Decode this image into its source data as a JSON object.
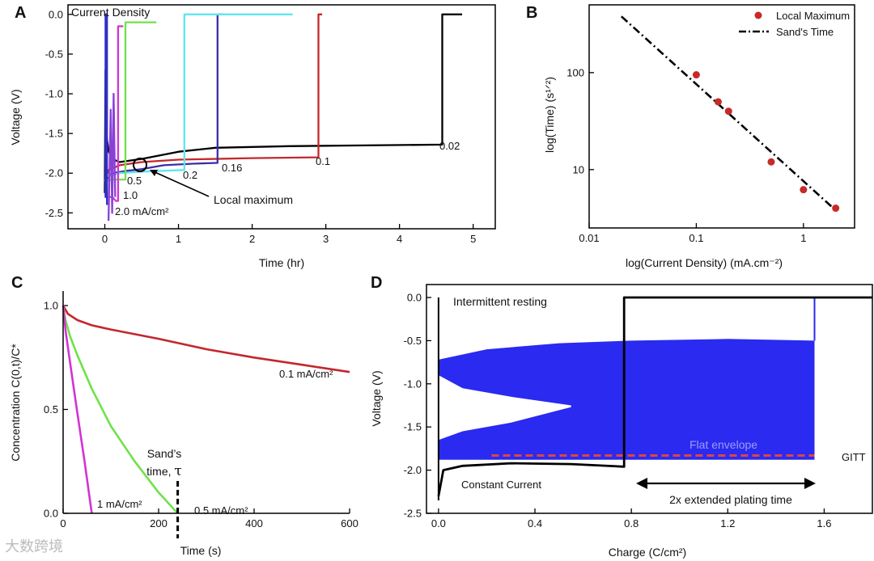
{
  "watermark": "大数跨境",
  "colors": {
    "black": "#000000",
    "red": "#c4272b",
    "cyan": "#5ee6ee",
    "blue": "#2f2fc4",
    "navy": "#3a2fa6",
    "green": "#6fe24a",
    "magenta": "#d432d4",
    "purple": "#8a40d8",
    "fill_blue": "#2a2af0",
    "dash_red": "#e0453f",
    "dot_red": "#c62a2a"
  },
  "chart_data": [
    {
      "panel": "A",
      "type": "line",
      "annotation_title": "Current Density",
      "xlabel": "Time (hr)",
      "ylabel": "Voltage (V)",
      "xlim": [
        -0.5,
        5.3
      ],
      "ylim": [
        -2.7,
        0.12
      ],
      "xticks": [
        "0",
        "1",
        "2",
        "3",
        "4",
        "5"
      ],
      "yticks": [
        "0.0",
        "-0.5",
        "-1.0",
        "-1.5",
        "-2.0",
        "-2.5"
      ],
      "series_labels": [
        "0.02",
        "0.1",
        "0.16",
        "0.2",
        "0.5",
        "1.0",
        "2.0 mA/cm²"
      ],
      "callout": "Local maximum",
      "series": [
        {
          "name": "0.02",
          "color": "black",
          "points": [
            [
              0.0,
              -2.25
            ],
            [
              0.01,
              -0.7
            ],
            [
              0.02,
              -1.5
            ],
            [
              0.05,
              -1.72
            ],
            [
              0.1,
              -1.82
            ],
            [
              0.2,
              -1.86
            ],
            [
              0.5,
              -1.82
            ],
            [
              1.0,
              -1.73
            ],
            [
              1.5,
              -1.68
            ],
            [
              2.5,
              -1.66
            ],
            [
              3.5,
              -1.65
            ],
            [
              4.58,
              -1.64
            ],
            [
              4.58,
              0.0
            ],
            [
              4.85,
              0.0
            ]
          ]
        },
        {
          "name": "0.1",
          "color": "red",
          "points": [
            [
              0.0,
              -2.1
            ],
            [
              0.05,
              -1.96
            ],
            [
              0.2,
              -1.9
            ],
            [
              0.5,
              -1.86
            ],
            [
              1.0,
              -1.83
            ],
            [
              2.0,
              -1.81
            ],
            [
              2.9,
              -1.8
            ],
            [
              2.9,
              0.0
            ],
            [
              2.95,
              0.0
            ]
          ]
        },
        {
          "name": "0.16",
          "color": "navy",
          "points": [
            [
              0.0,
              -2.1
            ],
            [
              0.1,
              -2.0
            ],
            [
              0.3,
              -1.97
            ],
            [
              0.5,
              -1.95
            ],
            [
              0.8,
              -1.9
            ],
            [
              1.2,
              -1.88
            ],
            [
              1.53,
              -1.87
            ],
            [
              1.53,
              0.0
            ],
            [
              1.6,
              0.0
            ]
          ]
        },
        {
          "name": "0.2",
          "color": "cyan",
          "points": [
            [
              0.0,
              -2.05
            ],
            [
              0.2,
              -2.0
            ],
            [
              0.5,
              -1.98
            ],
            [
              1.08,
              -1.96
            ],
            [
              1.08,
              0.0
            ],
            [
              2.55,
              0.0
            ]
          ]
        },
        {
          "name": "0.5",
          "color": "green",
          "points": [
            [
              0.0,
              -2.1
            ],
            [
              0.1,
              -2.08
            ],
            [
              0.2,
              -2.08
            ],
            [
              0.28,
              -2.08
            ],
            [
              0.28,
              -0.1
            ],
            [
              0.7,
              -0.1
            ]
          ]
        },
        {
          "name": "1.0",
          "color": "magenta",
          "points": [
            [
              0.05,
              -2.3
            ],
            [
              0.1,
              -2.3
            ],
            [
              0.15,
              -2.35
            ],
            [
              0.18,
              -2.35
            ],
            [
              0.18,
              -0.15
            ],
            [
              0.25,
              -0.15
            ]
          ]
        },
        {
          "name": "2.0 mA/cm²",
          "color": "purple",
          "points": [
            [
              0.05,
              -2.6
            ],
            [
              0.08,
              -1.2
            ],
            [
              0.1,
              -2.5
            ],
            [
              0.12,
              -1.0
            ],
            [
              0.14,
              -2.3
            ]
          ]
        },
        {
          "name": "blue spike",
          "color": "blue",
          "points": [
            [
              0.0,
              -2.3
            ],
            [
              0.01,
              -2.3
            ],
            [
              0.01,
              0.0
            ],
            [
              0.03,
              0.0
            ],
            [
              0.03,
              -2.4
            ]
          ]
        }
      ]
    },
    {
      "panel": "B",
      "type": "scatter",
      "xlabel": "log(Current Density) (mA.cm⁻²)",
      "ylabel": "log(Time) (s¹ᐟ²)",
      "xscale": "log",
      "yscale": "log",
      "xlim": [
        0.01,
        3
      ],
      "ylim": [
        2.5,
        500
      ],
      "xticks": [
        "0.01",
        "0.1",
        "1"
      ],
      "yticks": [
        "10",
        "100"
      ],
      "legend": [
        "Local Maximum",
        "Sand's Time"
      ],
      "points": [
        [
          0.1,
          95
        ],
        [
          0.16,
          50
        ],
        [
          0.2,
          40
        ],
        [
          0.5,
          12
        ],
        [
          1.0,
          6.2
        ],
        [
          2.0,
          4.0
        ]
      ],
      "fit_line": [
        [
          0.02,
          380
        ],
        [
          2.0,
          3.8
        ]
      ]
    },
    {
      "panel": "C",
      "type": "line",
      "xlabel": "Time (s)",
      "ylabel": "Concentration C(0,t)/C*",
      "xlim": [
        0,
        600
      ],
      "ylim": [
        0,
        1.05
      ],
      "xticks": [
        "0",
        "200",
        "400",
        "600"
      ],
      "yticks": [
        "0.0",
        "0.5",
        "1.0"
      ],
      "annotation": "Sand's time, τ",
      "sand_time": 240,
      "series_labels": [
        "0.1 mA/cm²",
        "0.5 mA/cm²",
        "1 mA/cm²"
      ],
      "series": [
        {
          "name": "0.1 mA/cm²",
          "color": "red",
          "points": [
            [
              0,
              1.0
            ],
            [
              10,
              0.96
            ],
            [
              30,
              0.93
            ],
            [
              60,
              0.905
            ],
            [
              100,
              0.885
            ],
            [
              200,
              0.84
            ],
            [
              300,
              0.79
            ],
            [
              400,
              0.75
            ],
            [
              500,
              0.715
            ],
            [
              600,
              0.68
            ]
          ]
        },
        {
          "name": "0.5 mA/cm²",
          "color": "green",
          "points": [
            [
              0,
              1.0
            ],
            [
              5,
              0.93
            ],
            [
              15,
              0.85
            ],
            [
              30,
              0.76
            ],
            [
              60,
              0.6
            ],
            [
              100,
              0.42
            ],
            [
              150,
              0.25
            ],
            [
              200,
              0.1
            ],
            [
              240,
              0.0
            ]
          ]
        },
        {
          "name": "1 mA/cm²",
          "color": "magenta",
          "points": [
            [
              0,
              1.0
            ],
            [
              5,
              0.88
            ],
            [
              15,
              0.72
            ],
            [
              30,
              0.48
            ],
            [
              45,
              0.25
            ],
            [
              60,
              0.0
            ]
          ]
        }
      ]
    },
    {
      "panel": "D",
      "type": "area",
      "xlabel": "Charge (C/cm²)",
      "ylabel": "Voltage (V)",
      "xlim": [
        -0.05,
        1.8
      ],
      "ylim": [
        -2.5,
        0.15
      ],
      "xticks": [
        "0.0",
        "0.4",
        "0.8",
        "1.2",
        "1.6"
      ],
      "yticks": [
        "0.0",
        "-0.5",
        "-1.0",
        "-1.5",
        "-2.0",
        "-2.5"
      ],
      "annotations": [
        "Intermittent resting",
        "Flat envelope",
        "GITT",
        "Constant Current",
        "2x extended plating time"
      ],
      "gitt_upper": [
        [
          0.0,
          -0.72
        ],
        [
          0.2,
          -0.6
        ],
        [
          0.5,
          -0.53
        ],
        [
          0.8,
          -0.5
        ],
        [
          1.2,
          -0.48
        ],
        [
          1.56,
          -0.5
        ]
      ],
      "gitt_lower": [
        [
          0.0,
          -1.88
        ],
        [
          1.56,
          -1.88
        ]
      ],
      "gitt_white_upper": [
        [
          0.0,
          -0.9
        ],
        [
          0.1,
          -1.05
        ],
        [
          0.3,
          -1.15
        ],
        [
          0.55,
          -1.25
        ]
      ],
      "gitt_white_lower": [
        [
          0.0,
          -1.65
        ],
        [
          0.1,
          -1.55
        ],
        [
          0.3,
          -1.45
        ],
        [
          0.55,
          -1.27
        ]
      ],
      "flat_envelope": -1.83,
      "constant_current": [
        [
          0.0,
          -2.3
        ],
        [
          0.02,
          -2.0
        ],
        [
          0.1,
          -1.95
        ],
        [
          0.3,
          -1.92
        ],
        [
          0.55,
          -1.93
        ],
        [
          0.77,
          -1.96
        ],
        [
          0.77,
          0.0
        ],
        [
          1.56,
          0.0
        ],
        [
          1.56,
          0.0
        ],
        [
          1.8,
          0.0
        ]
      ],
      "gitt_end_step": [
        [
          1.56,
          -0.5
        ],
        [
          1.56,
          0.0
        ],
        [
          1.8,
          0.0
        ]
      ]
    }
  ]
}
